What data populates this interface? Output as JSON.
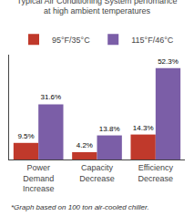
{
  "chart_data": {
    "type": "bar",
    "title": "Typical Air Conditioning System perfomance\nat high ambient temperatures",
    "categories": [
      "Power\nDemand\nIncrease",
      "Capacity\nDecrease",
      "Efficiency\nDecrease"
    ],
    "series": [
      {
        "name": "95°F/35°C",
        "color": "#c0392b",
        "values": [
          9.5,
          4.2,
          14.3
        ],
        "value_labels": [
          "9.5%",
          "4.2%",
          "14.3%"
        ]
      },
      {
        "name": "115°F/46°C",
        "color": "#7b5ea7",
        "values": [
          31.6,
          13.8,
          52.3
        ],
        "value_labels": [
          "31.6%",
          "13.8%",
          "52.3%"
        ]
      }
    ],
    "ylim": [
      0,
      60
    ],
    "tick_labels": "x",
    "grid": false,
    "legend": "top",
    "data_labels": true,
    "annotations": [
      "*Graph based on 100 ton air-cooled chiller."
    ]
  }
}
